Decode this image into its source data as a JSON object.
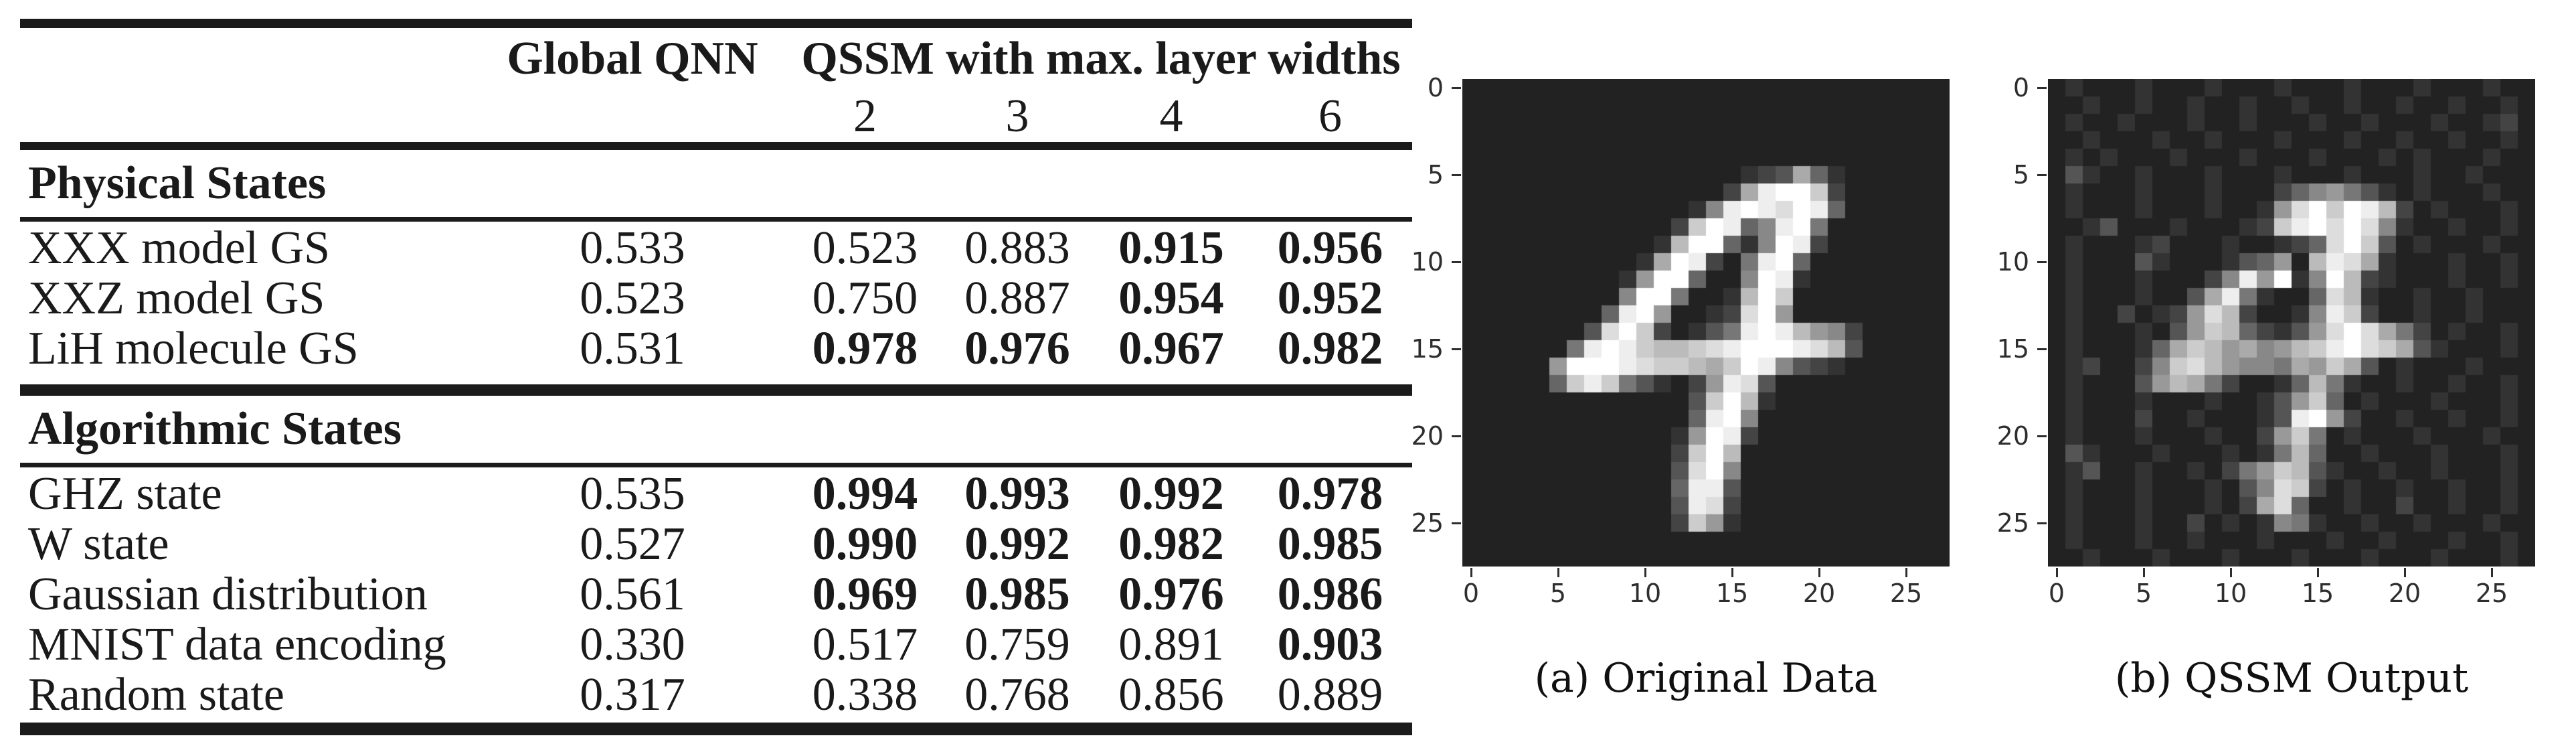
{
  "figure": {
    "table": {
      "header": {
        "global_qnn": "Global QNN",
        "qssm_group": "QSSM with max. layer widths",
        "widths": [
          "2",
          "3",
          "4",
          "6"
        ]
      },
      "sections": [
        {
          "title": "Physical States",
          "rows": [
            {
              "name": "XXX model GS",
              "values": [
                "0.533",
                "0.523",
                "0.883",
                "0.915",
                "0.956"
              ],
              "bold": [
                0,
                0,
                0,
                1,
                1
              ]
            },
            {
              "name": "XXZ model GS",
              "values": [
                "0.523",
                "0.750",
                "0.887",
                "0.954",
                "0.952"
              ],
              "bold": [
                0,
                0,
                0,
                1,
                1
              ]
            },
            {
              "name": "LiH molecule GS",
              "values": [
                "0.531",
                "0.978",
                "0.976",
                "0.967",
                "0.982"
              ],
              "bold": [
                0,
                1,
                1,
                1,
                1
              ]
            }
          ]
        },
        {
          "title": "Algorithmic States",
          "rows": [
            {
              "name": "GHZ state",
              "values": [
                "0.535",
                "0.994",
                "0.993",
                "0.992",
                "0.978"
              ],
              "bold": [
                0,
                1,
                1,
                1,
                1
              ]
            },
            {
              "name": "W state",
              "values": [
                "0.527",
                "0.990",
                "0.992",
                "0.982",
                "0.985"
              ],
              "bold": [
                0,
                1,
                1,
                1,
                1
              ]
            },
            {
              "name": "Gaussian distribution",
              "values": [
                "0.561",
                "0.969",
                "0.985",
                "0.976",
                "0.986"
              ],
              "bold": [
                0,
                1,
                1,
                1,
                1
              ]
            },
            {
              "name": "MNIST data encoding",
              "values": [
                "0.330",
                "0.517",
                "0.759",
                "0.891",
                "0.903"
              ],
              "bold": [
                0,
                0,
                0,
                0,
                1
              ]
            },
            {
              "name": "Random state",
              "values": [
                "0.317",
                "0.338",
                "0.768",
                "0.856",
                "0.889"
              ],
              "bold": [
                0,
                0,
                0,
                0,
                0
              ]
            }
          ]
        }
      ]
    },
    "panels": [
      {
        "caption": "(a) Original Data",
        "xticks": [
          "0",
          "5",
          "10",
          "15",
          "20",
          "25"
        ],
        "yticks": [
          "0",
          "5",
          "10",
          "15",
          "20",
          "25"
        ],
        "pixels": [
          "2222222222222222222222222222",
          "2222222222222222222222222222",
          "2222222222222222222222222222",
          "2222222222222222222222222222",
          "2222222222222222222222222222",
          "2222222222222222345a63222222",
          "2222222222222224aeffc4222222",
          "222222222222238efedfe6222222",
          "2222222222224cfe68ef72222222",
          "222222222223bff638fe42222222",
          "22222222223afe427ef622222222",
          "22222222239ff6228fe322222222",
          "2222222228ff7223bfc222222222",
          "222222226ef92234df9222222222",
          "22222225dfc42357efeb98422222",
          "2222227efecbbcdefffedb522222",
          "222229fffedccbacfe8543222222",
          "222226cec753249ed52222222222",
          "22222222222225cfb32222222222",
          "22222222222226ef822222222222",
          "22222222222239fe422222222222",
          "2222222222224cfb222222222222",
          "2222222222225df8222222222222",
          "2222222222226ee5222222222222",
          "2222222222225ed4222222222222",
          "2222222222224c93222222222222",
          "2222222222222222222222222222",
          "2222222222222222222222222222"
        ]
      },
      {
        "caption": "(b) QSSM Output",
        "xticks": [
          "0",
          "5",
          "10",
          "15",
          "20",
          "25"
        ],
        "yticks": [
          "0",
          "5",
          "10",
          "15",
          "20",
          "25"
        ],
        "pixels": [
          "2322232223222322232223222322",
          "2232232232232232232232232232",
          "2322322232232223223222322342",
          "2232223223222322232232232232",
          "2323222322232223222323222322",
          "2532232223222322232223223222",
          "2322232223222468975323222322",
          "23222322232239dfcfeb42322232",
          "2235222322234cefdfd832232232",
          "2322234222322346dfc523222322",
          "232225322235692beda322232232",
          "23222322248e9f38fb4322232232",
          "232223225ae73226db3223223222",
          "232242349db42238ec4223223222",
          "232223259cb64359dfda74232232",
          "2322236acb9a89bcefdca5322232",
          "2342248cdb9887a9ca5232223222",
          "2322259ba742236b732232232232",
          "232223222322359c623222322232",
          "23222422322235ef942232232232",
          "23222322232249c7232223222322",
          "25322232223237b6223222322232",
          "2352232232479cb5322322322232",
          "2322232223258dc4232232232232",
          "232223222324ad62232242232232",
          "2322232242323873223223222322",
          "2322232232223222322322232232",
          "2232223222322232223222322232"
        ]
      }
    ],
    "colors": {
      "plot_background": "#262626",
      "rule_color": "#1b1b1b",
      "text": "#1a1a1a",
      "tick_text": "#2e2e2e"
    }
  },
  "chart_data": [
    {
      "type": "table",
      "columns": [
        "",
        "Global QNN",
        "QSSM width 2",
        "QSSM width 3",
        "QSSM width 4",
        "QSSM width 6"
      ],
      "groups": [
        {
          "name": "Physical States",
          "rows": [
            [
              "XXX model GS",
              0.533,
              0.523,
              0.883,
              0.915,
              0.956
            ],
            [
              "XXZ model GS",
              0.523,
              0.75,
              0.887,
              0.954,
              0.952
            ],
            [
              "LiH molecule GS",
              0.531,
              0.978,
              0.976,
              0.967,
              0.982
            ]
          ]
        },
        {
          "name": "Algorithmic States",
          "rows": [
            [
              "GHZ state",
              0.535,
              0.994,
              0.993,
              0.992,
              0.978
            ],
            [
              "W state",
              0.527,
              0.99,
              0.992,
              0.982,
              0.985
            ],
            [
              "Gaussian distribution",
              0.561,
              0.969,
              0.985,
              0.976,
              0.986
            ],
            [
              "MNIST data encoding",
              0.33,
              0.517,
              0.759,
              0.891,
              0.903
            ],
            [
              "Random state",
              0.317,
              0.338,
              0.768,
              0.856,
              0.889
            ]
          ]
        }
      ]
    },
    {
      "type": "heatmap",
      "title": "(a) Original Data",
      "x_ticks": [
        0,
        5,
        10,
        15,
        20,
        25
      ],
      "y_ticks": [
        0,
        5,
        10,
        15,
        20,
        25
      ],
      "grid_size": [
        28,
        28
      ],
      "data_ref": "figure.panels.0.pixels"
    },
    {
      "type": "heatmap",
      "title": "(b) QSSM Output",
      "x_ticks": [
        0,
        5,
        10,
        15,
        20,
        25
      ],
      "y_ticks": [
        0,
        5,
        10,
        15,
        20,
        25
      ],
      "grid_size": [
        28,
        28
      ],
      "data_ref": "figure.panels.1.pixels"
    }
  ]
}
